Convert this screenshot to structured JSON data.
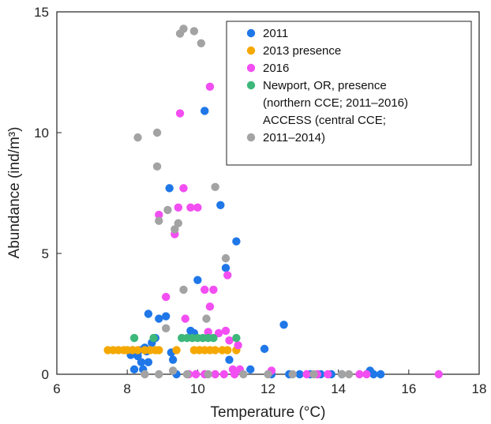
{
  "chart_data": {
    "type": "scatter",
    "xlabel": "Temperature (°C)",
    "ylabel": "Abundance (ind/m³)",
    "xlim": [
      6,
      18
    ],
    "ylim": [
      0,
      15
    ],
    "xticks": [
      6,
      8,
      10,
      12,
      14,
      16,
      18
    ],
    "yticks": [
      0,
      5,
      10,
      15
    ],
    "grid": false,
    "legend_position": "top-right",
    "legend_lines": [
      {
        "text": "2011",
        "series": 0
      },
      {
        "text": "2013 presence",
        "series": 1
      },
      {
        "text": "2016",
        "series": 2
      },
      {
        "text": "Newport, OR, presence",
        "series": 3
      },
      {
        "text": "(northern CCE; 2011–2016)",
        "series": null
      },
      {
        "text": "ACCESS (central CCE;",
        "series": null
      },
      {
        "text": "2011–2014)",
        "series": 4
      }
    ],
    "series": [
      {
        "name": "2011",
        "color": "#1f77e8",
        "points": [
          [
            8.1,
            0.8
          ],
          [
            8.15,
            1.0
          ],
          [
            8.2,
            0.2
          ],
          [
            8.25,
            0.9
          ],
          [
            8.3,
            0.75
          ],
          [
            8.35,
            1.0
          ],
          [
            8.4,
            0.5
          ],
          [
            8.45,
            0.2
          ],
          [
            8.5,
            1.1
          ],
          [
            8.55,
            0.95
          ],
          [
            8.6,
            0.5
          ],
          [
            8.6,
            2.5
          ],
          [
            8.7,
            1.3
          ],
          [
            8.8,
            1.5
          ],
          [
            8.9,
            2.3
          ],
          [
            9.1,
            2.4
          ],
          [
            9.2,
            7.7
          ],
          [
            9.25,
            0.9
          ],
          [
            9.3,
            0.6
          ],
          [
            9.4,
            0
          ],
          [
            9.8,
            1.8
          ],
          [
            9.9,
            1.7
          ],
          [
            10.0,
            3.9
          ],
          [
            10.2,
            10.9
          ],
          [
            10.65,
            7.0
          ],
          [
            10.8,
            4.4
          ],
          [
            10.9,
            0.6
          ],
          [
            11.1,
            5.5
          ],
          [
            11.5,
            0.2
          ],
          [
            11.9,
            1.05
          ],
          [
            12.1,
            0
          ],
          [
            12.45,
            2.05
          ],
          [
            12.6,
            0
          ],
          [
            12.9,
            0
          ],
          [
            13.2,
            0
          ],
          [
            13.5,
            0
          ],
          [
            13.8,
            0
          ],
          [
            14.1,
            0
          ],
          [
            14.9,
            0.15
          ],
          [
            15.0,
            0
          ],
          [
            15.2,
            0
          ]
        ]
      },
      {
        "name": "2013 presence",
        "color": "#f5a800",
        "points": [
          [
            7.45,
            1.0
          ],
          [
            7.6,
            1.0
          ],
          [
            7.75,
            1.0
          ],
          [
            7.9,
            1.0
          ],
          [
            8.0,
            1.0
          ],
          [
            8.15,
            1.0
          ],
          [
            8.3,
            1.0
          ],
          [
            8.5,
            1.0
          ],
          [
            8.65,
            1.0
          ],
          [
            8.8,
            1.0
          ],
          [
            8.9,
            1.0
          ],
          [
            9.4,
            1.0
          ],
          [
            9.9,
            1.0
          ],
          [
            10.05,
            1.0
          ],
          [
            10.2,
            1.0
          ],
          [
            10.35,
            1.0
          ],
          [
            10.5,
            1.0
          ],
          [
            10.7,
            1.0
          ],
          [
            10.85,
            1.0
          ],
          [
            11.1,
            1.0
          ]
        ]
      },
      {
        "name": "2016",
        "color": "#f24ef2",
        "points": [
          [
            8.9,
            6.6
          ],
          [
            9.1,
            3.2
          ],
          [
            9.35,
            5.8
          ],
          [
            9.45,
            6.9
          ],
          [
            9.5,
            10.8
          ],
          [
            9.6,
            7.7
          ],
          [
            9.65,
            2.3
          ],
          [
            9.75,
            0
          ],
          [
            9.8,
            6.9
          ],
          [
            10.0,
            6.9
          ],
          [
            10.2,
            3.5
          ],
          [
            10.3,
            1.75
          ],
          [
            10.35,
            11.9
          ],
          [
            10.35,
            2.8
          ],
          [
            10.45,
            3.5
          ],
          [
            10.6,
            1.7
          ],
          [
            10.8,
            1.8
          ],
          [
            10.85,
            4.1
          ],
          [
            10.9,
            1.4
          ],
          [
            11.0,
            0.2
          ],
          [
            11.15,
            1.2
          ],
          [
            11.2,
            0.2
          ],
          [
            9.95,
            0
          ],
          [
            10.2,
            0
          ],
          [
            10.5,
            0
          ],
          [
            10.75,
            0
          ],
          [
            11.05,
            0
          ],
          [
            12.1,
            0.15
          ],
          [
            13.1,
            0
          ],
          [
            13.4,
            0
          ],
          [
            13.7,
            0
          ],
          [
            14.6,
            0
          ],
          [
            14.8,
            0
          ],
          [
            16.85,
            0
          ]
        ]
      },
      {
        "name": "Newport, OR, presence",
        "color": "#3db87a",
        "points": [
          [
            8.2,
            1.5
          ],
          [
            8.75,
            1.5
          ],
          [
            9.55,
            1.5
          ],
          [
            9.7,
            1.5
          ],
          [
            9.85,
            1.5
          ],
          [
            10.0,
            1.5
          ],
          [
            10.15,
            1.5
          ],
          [
            10.3,
            1.5
          ],
          [
            10.45,
            1.5
          ],
          [
            11.1,
            1.5
          ]
        ]
      },
      {
        "name": "ACCESS (central CCE; 2011–2014)",
        "color": "#a3a3a3",
        "points": [
          [
            8.3,
            9.8
          ],
          [
            8.5,
            0
          ],
          [
            8.85,
            10.0
          ],
          [
            8.85,
            8.6
          ],
          [
            8.9,
            6.35
          ],
          [
            9.1,
            1.9
          ],
          [
            9.15,
            6.8
          ],
          [
            9.3,
            0.15
          ],
          [
            9.35,
            6.0
          ],
          [
            9.45,
            6.25
          ],
          [
            9.5,
            14.1
          ],
          [
            9.6,
            14.3
          ],
          [
            9.6,
            3.5
          ],
          [
            9.9,
            14.2
          ],
          [
            10.1,
            13.7
          ],
          [
            10.25,
            2.3
          ],
          [
            10.5,
            7.75
          ],
          [
            10.8,
            4.8
          ],
          [
            8.9,
            0
          ],
          [
            9.7,
            0
          ],
          [
            10.3,
            0
          ],
          [
            11.3,
            0
          ],
          [
            12.0,
            0
          ],
          [
            12.7,
            0
          ],
          [
            13.3,
            0
          ],
          [
            14.1,
            0
          ],
          [
            14.3,
            0
          ]
        ]
      }
    ]
  }
}
